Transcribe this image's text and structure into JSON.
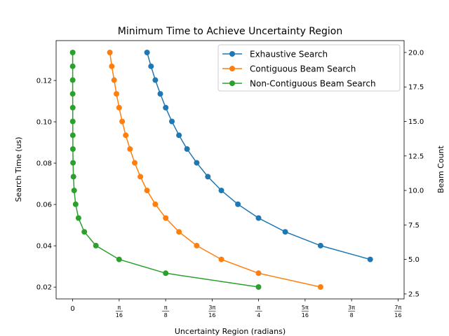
{
  "chart_data": {
    "type": "line",
    "title": "Minimum Time to Achieve Uncertainty Region",
    "xlabel": "Uncertainty Region (radians)",
    "ylabel_left": "Search Time (us)",
    "ylabel_right": "Beam Count",
    "xlim": [
      -0.07,
      1.4
    ],
    "ylim_left": [
      0.0143,
      0.1393
    ],
    "ylim_right": [
      2.14,
      20.86
    ],
    "grid": false,
    "legend_position": "top-right",
    "x_ticks": [
      {
        "value": 0,
        "num": "0",
        "den": ""
      },
      {
        "value": 0.19635,
        "num": "π",
        "den": "16"
      },
      {
        "value": 0.3927,
        "num": "π",
        "den": "8"
      },
      {
        "value": 0.58905,
        "num": "3π",
        "den": "16"
      },
      {
        "value": 0.7854,
        "num": "π",
        "den": "4"
      },
      {
        "value": 0.98175,
        "num": "5π",
        "den": "16"
      },
      {
        "value": 1.1781,
        "num": "3π",
        "den": "8"
      },
      {
        "value": 1.37445,
        "num": "7π",
        "den": "16"
      }
    ],
    "y_left_ticks": [
      "0.02",
      "0.04",
      "0.06",
      "0.08",
      "0.10",
      "0.12"
    ],
    "y_right_ticks": [
      "2.5",
      "5.0",
      "7.5",
      "10.0",
      "12.5",
      "15.0",
      "17.5",
      "20.0"
    ],
    "beam_counts": [
      3,
      4,
      5,
      6,
      7,
      8,
      9,
      10,
      11,
      12,
      13,
      14,
      15,
      16,
      17,
      18,
      19,
      20
    ],
    "series": [
      {
        "name": "Exhaustive Search",
        "color": "#1f77b4",
        "beam_counts": [
          5,
          6,
          7,
          8,
          9,
          10,
          11,
          12,
          13,
          14,
          15,
          16,
          17,
          18,
          19,
          20
        ],
        "x": [
          1.257,
          1.047,
          0.898,
          0.785,
          0.698,
          0.628,
          0.571,
          0.524,
          0.483,
          0.449,
          0.419,
          0.393,
          0.37,
          0.349,
          0.331,
          0.314
        ]
      },
      {
        "name": "Contiguous Beam Search",
        "color": "#ff7f0e",
        "beam_counts": [
          3,
          4,
          5,
          6,
          7,
          8,
          9,
          10,
          11,
          12,
          13,
          14,
          15,
          16,
          17,
          18,
          19,
          20
        ],
        "x": [
          1.047,
          0.785,
          0.628,
          0.524,
          0.449,
          0.393,
          0.349,
          0.314,
          0.286,
          0.262,
          0.242,
          0.224,
          0.209,
          0.196,
          0.185,
          0.175,
          0.165,
          0.157
        ]
      },
      {
        "name": "Non-Contiguous Beam Search",
        "color": "#2ca02c",
        "beam_counts": [
          3,
          4,
          5,
          6,
          7,
          8,
          9,
          10,
          11,
          12,
          13,
          14,
          15,
          16,
          17,
          18,
          19,
          20
        ],
        "x": [
          0.785,
          0.393,
          0.196,
          0.098,
          0.049,
          0.0245,
          0.0123,
          0.0061,
          0.0031,
          0.0015,
          0.0008,
          0.0004,
          0.0002,
          0.0001,
          5e-05,
          2e-05,
          1e-05,
          5e-06
        ]
      }
    ]
  }
}
